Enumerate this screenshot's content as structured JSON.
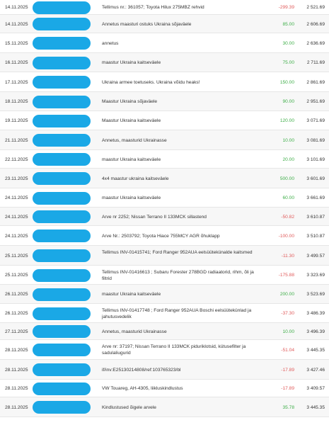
{
  "colors": {
    "positive": "#3fae49",
    "negative": "#e05a5a",
    "redaction": "#1aa8e6"
  },
  "transactions": [
    {
      "date": "14.11.2025",
      "description": "Tellimus nr.: 361057; Toyota Hilux 275MBZ rehvid",
      "amount": "-299.39",
      "balance": "2 521.69"
    },
    {
      "date": "14.11.2025",
      "description": "Annetus maasturi ostuks Ukraina sõjaväele",
      "amount": "85.00",
      "balance": "2 606.69"
    },
    {
      "date": "15.11.2025",
      "description": "annetus",
      "amount": "30.00",
      "balance": "2 636.69"
    },
    {
      "date": "16.11.2025",
      "description": "maastur Ukraina kaitseväele",
      "amount": "75.00",
      "balance": "2 711.69"
    },
    {
      "date": "17.11.2025",
      "description": "Ukraina armee toetuseks. Ukraina võidu heaks!",
      "amount": "150.00",
      "balance": "2 861.69"
    },
    {
      "date": "18.11.2025",
      "description": "Maastur Ukraina sõjaväele",
      "amount": "90.00",
      "balance": "2 951.69"
    },
    {
      "date": "19.11.2025",
      "description": "Maastur Ukraina kaitseväele",
      "amount": "120.00",
      "balance": "3 071.69"
    },
    {
      "date": "21.11.2025",
      "description": "Annetus, maasturid Ukrainasse",
      "amount": "10.00",
      "balance": "3 081.69"
    },
    {
      "date": "22.11.2025",
      "description": "maastur Ukraina kaitseväele",
      "amount": "20.00",
      "balance": "3 101.69"
    },
    {
      "date": "23.11.2025",
      "description": "4x4 maastur ukraina kaitseväele",
      "amount": "500.00",
      "balance": "3 601.69"
    },
    {
      "date": "24.11.2025",
      "description": "maastur Ukraina kaitseväele",
      "amount": "60.00",
      "balance": "3 661.69"
    },
    {
      "date": "24.11.2025",
      "description": "Arve nr 2252; Nissan Terrano II 133MCK sillastend",
      "amount": "-50.82",
      "balance": "3 610.87"
    },
    {
      "date": "24.11.2025",
      "description": "Arve Nr.: 2503792; Toyota Hiace 755MCY AGR õhuklapp",
      "amount": "-100.00",
      "balance": "3 510.87"
    },
    {
      "date": "25.11.2025",
      "description": "Tellimus INV-01415741; Ford Ranger 952AUA eelsüütekünalde kaitsmed",
      "amount": "-11.30",
      "balance": "3 499.57"
    },
    {
      "date": "25.11.2025",
      "description": "Tellimus INV-01416613 ; Subaru Forester 278BGD radiaatorid, rihm, õli ja filtrid",
      "amount": "-175.88",
      "balance": "3 323.69"
    },
    {
      "date": "26.11.2025",
      "description": "maastur Ukraina kaitseväele",
      "amount": "200.00",
      "balance": "3 523.69"
    },
    {
      "date": "26.11.2025",
      "description": "Tellimus INV-01417748 ; Ford Ranger 952AUA Boschi eelsüütekünlad ja jahutusvedelik",
      "amount": "-37.30",
      "balance": "3 486.39"
    },
    {
      "date": "27.11.2025",
      "description": "Annetus, maasturid Ukrainasse",
      "amount": "10.00",
      "balance": "3 496.39"
    },
    {
      "date": "28.11.2025",
      "description": "Arve nr: 37197; Nissan Terrano II 133MCK piduriklotsid, kütusefilter ja sadulaliugurid",
      "amount": "-51.04",
      "balance": "3 445.35"
    },
    {
      "date": "28.11.2025",
      "description": "if/inv:E25130214808/ref:103765323/bl",
      "amount": "-17.89",
      "balance": "3 427.46"
    },
    {
      "date": "28.11.2025",
      "description": "VW Touareg, AH-4305, liikluskindlustus",
      "amount": "-17.89",
      "balance": "3 409.57"
    },
    {
      "date": "28.11.2025",
      "description": "Kindlustused õigele arvele",
      "amount": "35.78",
      "balance": "3 445.35"
    }
  ]
}
